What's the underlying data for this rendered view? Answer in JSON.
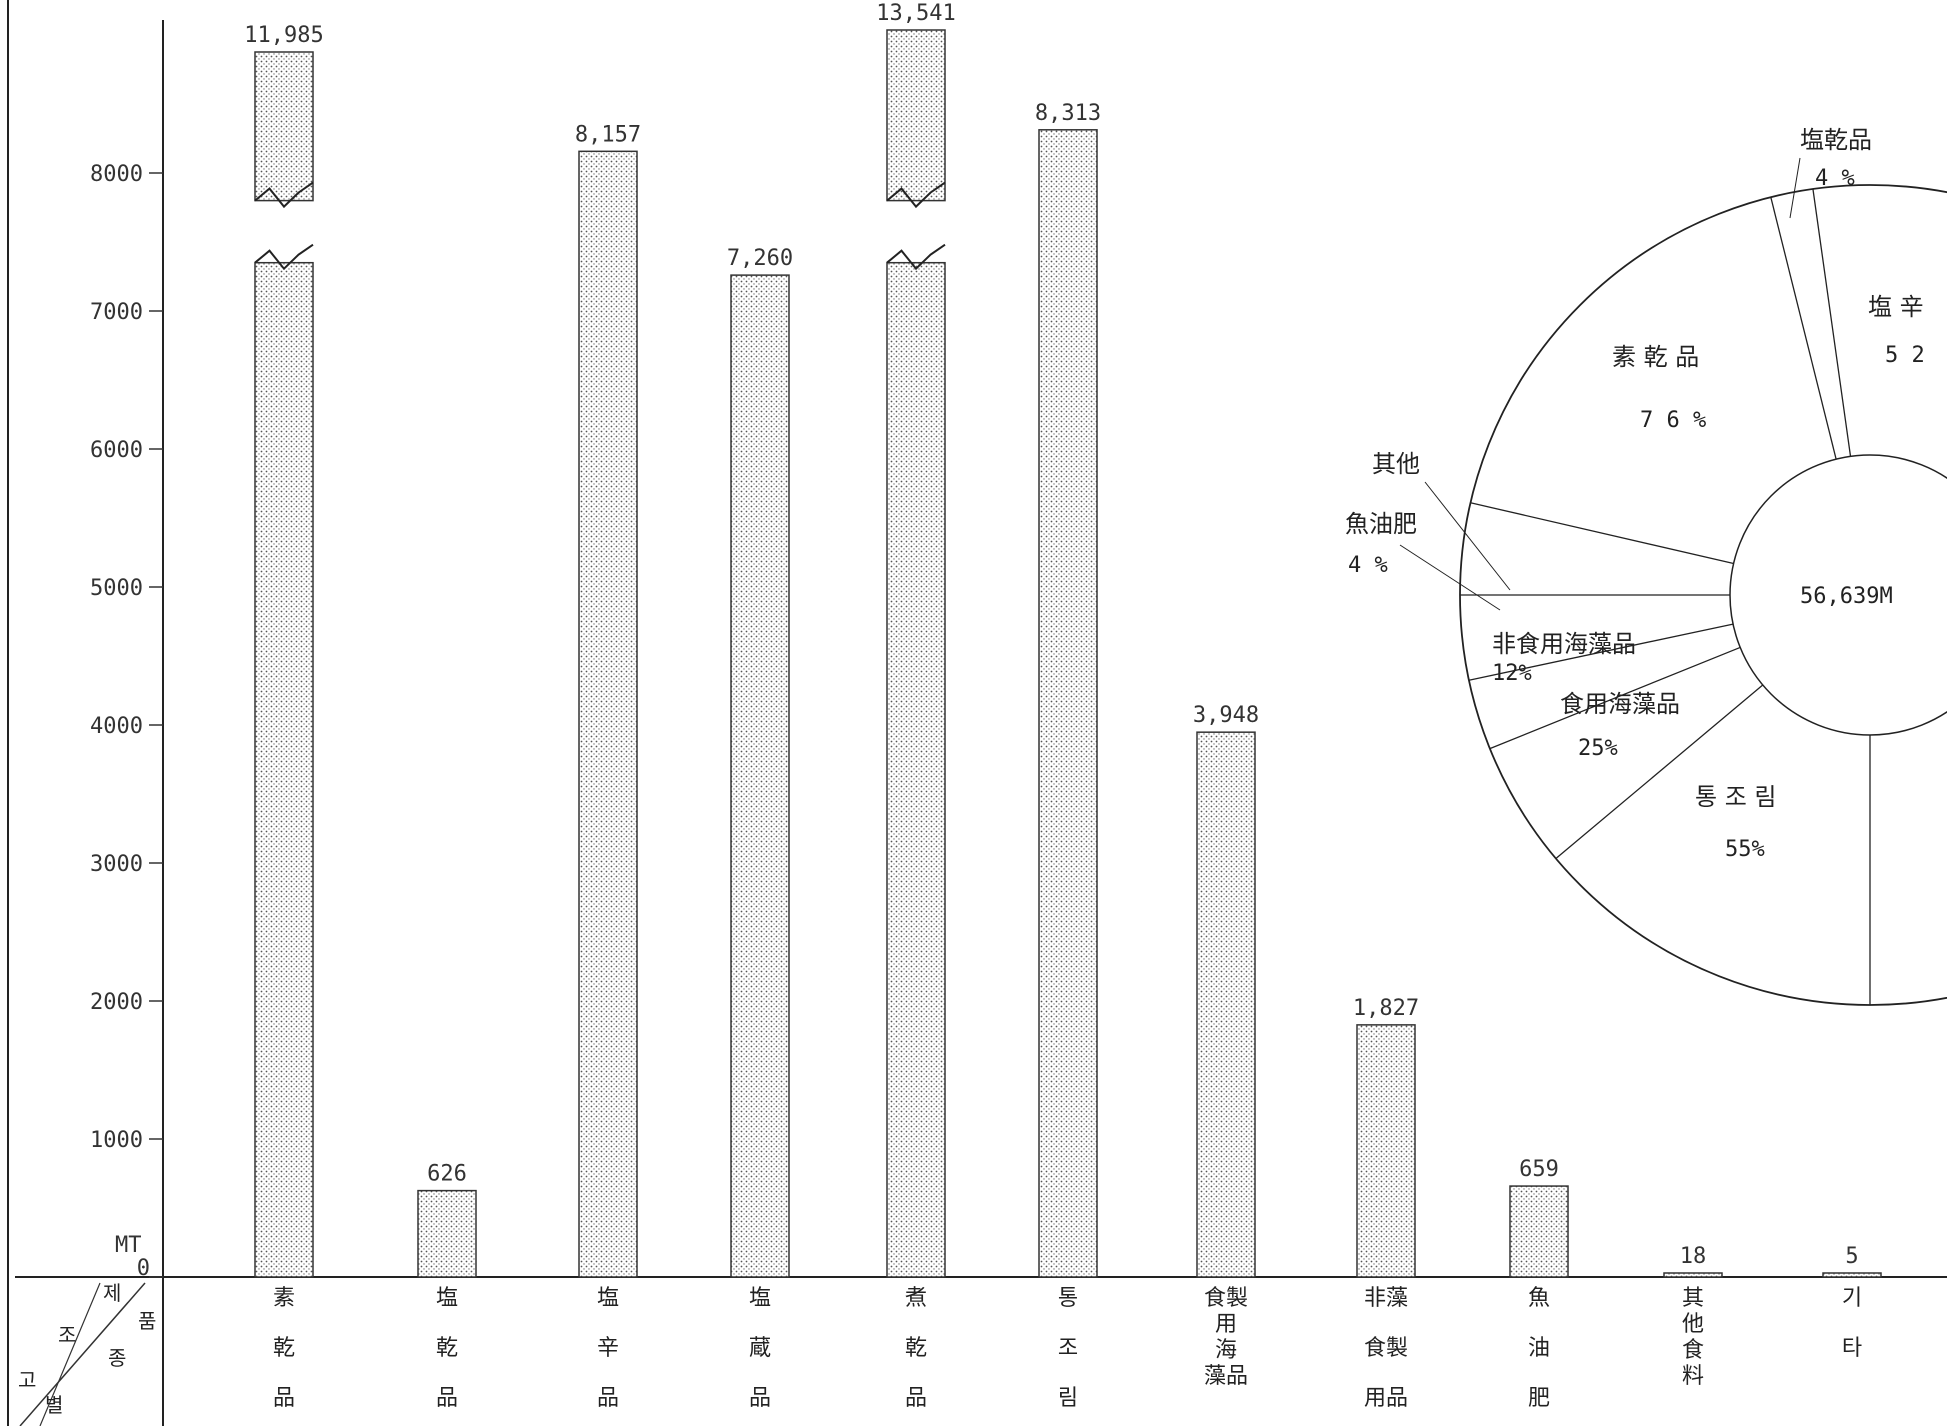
{
  "chart_data": [
    {
      "type": "bar",
      "unit_label": "MT",
      "y_ticks": [
        0,
        1000,
        2000,
        3000,
        4000,
        5000,
        6000,
        7000,
        8000
      ],
      "ylim": [
        0,
        8900
      ],
      "corner_header": {
        "top_right": [
          "제",
          "품"
        ],
        "middle": [
          "조",
          "종"
        ],
        "bottom_left": [
          "고",
          "별"
        ]
      },
      "categories": [
        {
          "label": "素乾品",
          "lines": [
            "素",
            "乾",
            "品"
          ],
          "value": 11985,
          "value_label": "11,985",
          "broken": true
        },
        {
          "label": "塩乾品",
          "lines": [
            "塩",
            "乾",
            "品"
          ],
          "value": 626,
          "value_label": "626",
          "broken": false
        },
        {
          "label": "塩辛品",
          "lines": [
            "塩",
            "辛",
            "品"
          ],
          "value": 8157,
          "value_label": "8,157",
          "broken": false
        },
        {
          "label": "塩蔵品",
          "lines": [
            "塩",
            "蔵",
            "品"
          ],
          "value": 7260,
          "value_label": "7,260",
          "broken": false
        },
        {
          "label": "煮乾品",
          "lines": [
            "煮",
            "乾",
            "品"
          ],
          "value": 13541,
          "value_label": "13,541",
          "broken": true
        },
        {
          "label": "통조림",
          "lines": [
            "통",
            "조",
            "림"
          ],
          "value": 8313,
          "value_label": "8,313",
          "broken": false
        },
        {
          "label": "食用製海藻品",
          "lines": [
            "食製",
            "用",
            "海",
            "藻品"
          ],
          "value": 3948,
          "value_label": "3,948",
          "broken": false
        },
        {
          "label": "非食用藻製品",
          "lines": [
            "非藻",
            "食製",
            "用品"
          ],
          "value": 1827,
          "value_label": "1,827",
          "broken": false
        },
        {
          "label": "魚油肥",
          "lines": [
            "魚",
            "油",
            "肥"
          ],
          "value": 659,
          "value_label": "659",
          "broken": false
        },
        {
          "label": "其他食料",
          "lines": [
            "其",
            "他",
            "食",
            "料"
          ],
          "value": 18,
          "value_label": "18",
          "broken": false
        },
        {
          "label": "기타",
          "lines": [
            "기",
            "타"
          ],
          "value": 5,
          "value_label": "5",
          "broken": false
        }
      ]
    },
    {
      "type": "pie",
      "center_label": "56,639M",
      "slices": [
        {
          "label": "塩乾品",
          "pct_label": "4 %",
          "value": 4
        },
        {
          "label": "塩 辛",
          "pct_label": "5 2",
          "value": 52
        },
        {
          "label": "통 조 림",
          "pct_label": "55%",
          "value": 55
        },
        {
          "label": "食用海藻品",
          "pct_label": "25%",
          "value": 25
        },
        {
          "label": "非食用海藻品",
          "pct_label": "12%",
          "value": 12
        },
        {
          "label": "魚油肥",
          "pct_label": "4 %",
          "value": 4
        },
        {
          "label": "其他",
          "pct_label": "",
          "value": 1
        },
        {
          "label": "素 乾 品",
          "pct_label": "7 6 %",
          "value": 76
        }
      ]
    }
  ]
}
